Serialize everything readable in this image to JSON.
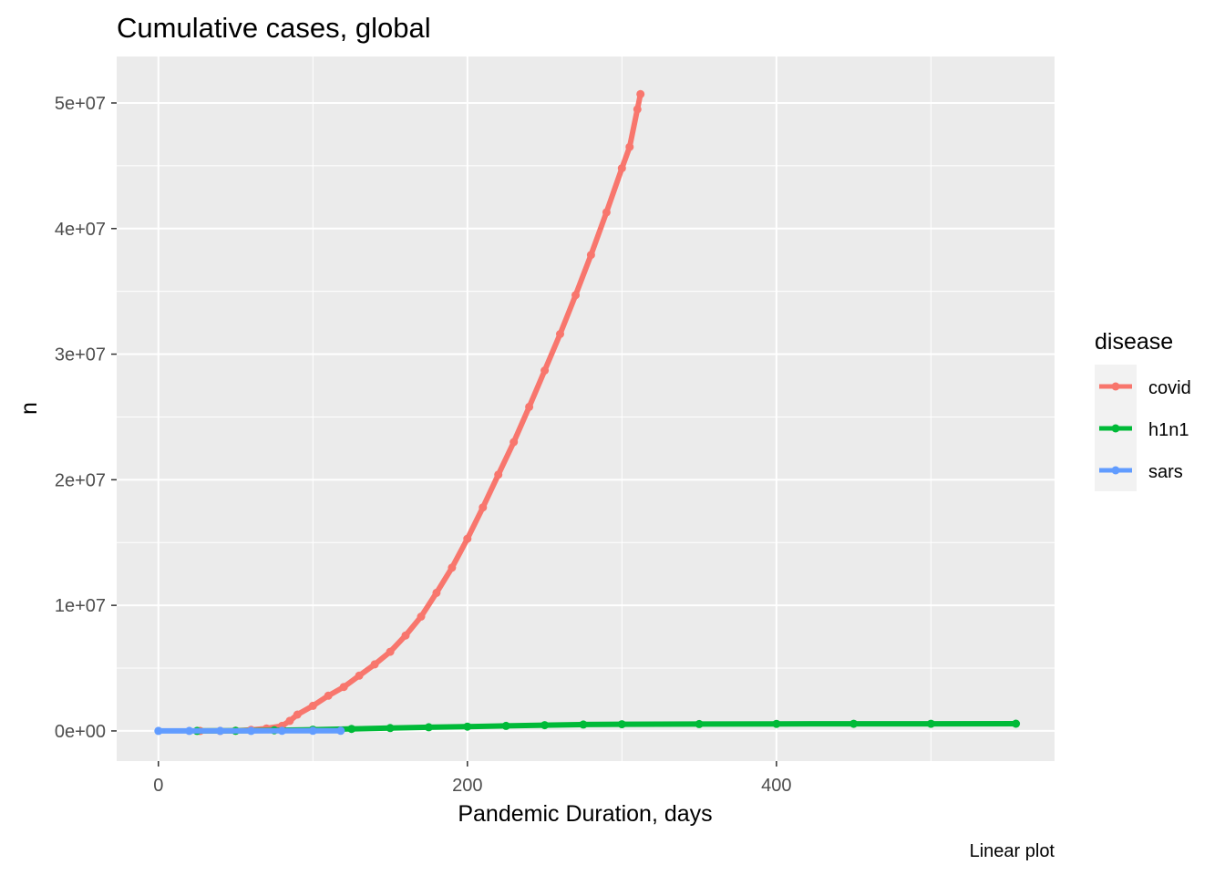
{
  "chart_data": {
    "type": "line",
    "title": "Cumulative cases, global",
    "xlabel": "Pandemic Duration, days",
    "ylabel": "n",
    "caption": "Linear plot",
    "xlim": [
      -27,
      580
    ],
    "ylim": [
      -2400000,
      53700000
    ],
    "x_ticks": [
      0,
      200,
      400
    ],
    "x_tick_labels": [
      "0",
      "200",
      "400"
    ],
    "y_ticks": [
      0,
      10000000,
      20000000,
      30000000,
      40000000,
      50000000
    ],
    "y_tick_labels": [
      "0e+00",
      "1e+07",
      "2e+07",
      "3e+07",
      "4e+07",
      "5e+07"
    ],
    "grid": true,
    "legend": {
      "title": "disease",
      "position": "right"
    },
    "series": [
      {
        "name": "covid",
        "color": "#F8766D",
        "points": [
          [
            27,
            0
          ],
          [
            40,
            5000
          ],
          [
            50,
            15000
          ],
          [
            60,
            80000
          ],
          [
            70,
            200000
          ],
          [
            80,
            400000
          ],
          [
            85,
            800000
          ],
          [
            90,
            1300000
          ],
          [
            100,
            2000000
          ],
          [
            110,
            2800000
          ],
          [
            120,
            3500000
          ],
          [
            130,
            4400000
          ],
          [
            140,
            5300000
          ],
          [
            150,
            6300000
          ],
          [
            160,
            7600000
          ],
          [
            170,
            9100000
          ],
          [
            180,
            11000000
          ],
          [
            190,
            13000000
          ],
          [
            200,
            15300000
          ],
          [
            210,
            17800000
          ],
          [
            220,
            20400000
          ],
          [
            230,
            23000000
          ],
          [
            240,
            25800000
          ],
          [
            250,
            28700000
          ],
          [
            260,
            31600000
          ],
          [
            270,
            34700000
          ],
          [
            280,
            37900000
          ],
          [
            290,
            41300000
          ],
          [
            300,
            44800000
          ],
          [
            305,
            46500000
          ],
          [
            310,
            49500000
          ],
          [
            312,
            50700000
          ]
        ]
      },
      {
        "name": "h1n1",
        "color": "#00BA38",
        "points": [
          [
            25,
            1000
          ],
          [
            50,
            10000
          ],
          [
            75,
            50000
          ],
          [
            100,
            100000
          ],
          [
            125,
            160000
          ],
          [
            150,
            230000
          ],
          [
            175,
            290000
          ],
          [
            200,
            340000
          ],
          [
            225,
            400000
          ],
          [
            250,
            460000
          ],
          [
            275,
            510000
          ],
          [
            300,
            530000
          ],
          [
            350,
            550000
          ],
          [
            400,
            560000
          ],
          [
            450,
            565000
          ],
          [
            500,
            570000
          ],
          [
            555,
            575000
          ]
        ]
      },
      {
        "name": "sars",
        "color": "#619CFF",
        "points": [
          [
            0,
            0
          ],
          [
            20,
            500
          ],
          [
            40,
            2000
          ],
          [
            60,
            4000
          ],
          [
            80,
            6000
          ],
          [
            100,
            7500
          ],
          [
            118,
            8000
          ]
        ]
      }
    ]
  }
}
